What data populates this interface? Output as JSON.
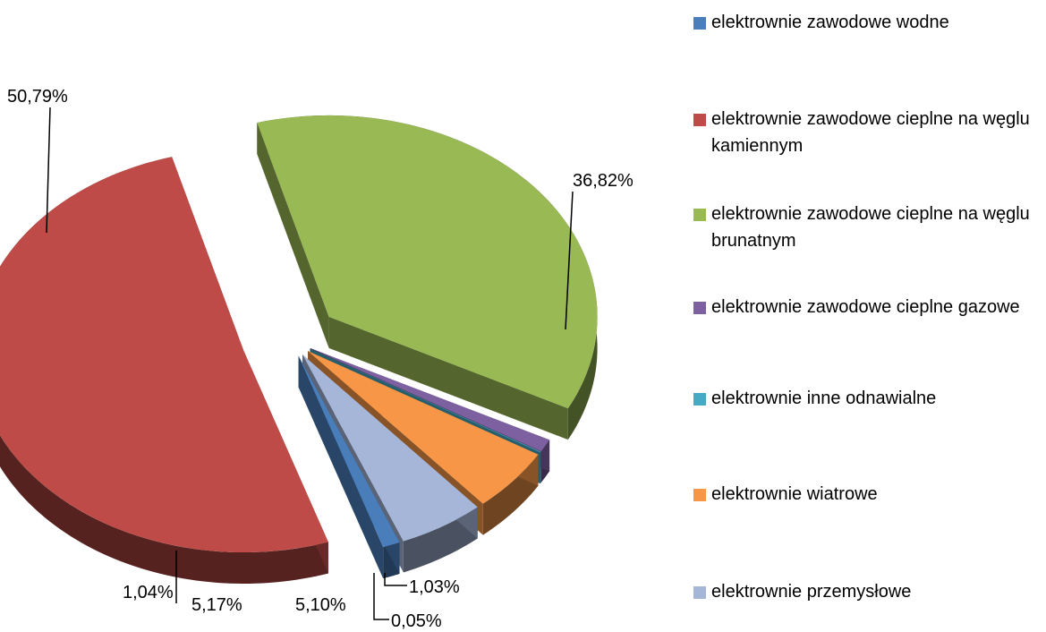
{
  "chart_data": {
    "type": "pie",
    "style": "3d-exploded",
    "legend_position": "right",
    "slices": [
      {
        "label": "elektrownie zawodowe wodne",
        "value": 1.04,
        "value_label": "1,04%",
        "color": "#4a7ebb"
      },
      {
        "label": "elektrownie zawodowe cieplne na węglu kamiennym",
        "value": 50.79,
        "value_label": "50,79%",
        "color": "#be4b48"
      },
      {
        "label": "elektrownie zawodowe cieplne na węglu brunatnym",
        "value": 36.82,
        "value_label": "36,82%",
        "color": "#98b954"
      },
      {
        "label": "elektrownie zawodowe cieplne gazowe",
        "value": 1.03,
        "value_label": "1,03%",
        "color": "#7d60a0"
      },
      {
        "label": "elektrownie inne odnawialne",
        "value": 0.05,
        "value_label": "0,05%",
        "color": "#46aac5"
      },
      {
        "label": "elektrownie wiatrowe",
        "value": 5.1,
        "value_label": "5,10%",
        "color": "#f79646"
      },
      {
        "label": "elektrownie przemysłowe",
        "value": 5.17,
        "value_label": "5,17%",
        "color": "#a5b6d9"
      }
    ]
  }
}
